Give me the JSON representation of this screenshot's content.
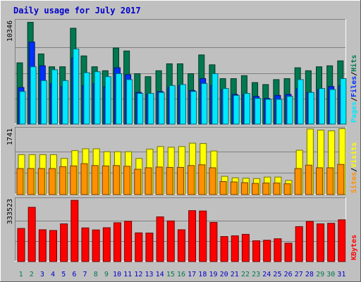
{
  "title": "Daily usage for July 2017",
  "colors": {
    "background": "#c0c0c0",
    "plot_bg": "#c0c0c0",
    "title": "#0000cc",
    "grid": "#808080",
    "hits": "#007850",
    "files": "#0030ff",
    "pages": "#00e8ff",
    "visits": "#ffff00",
    "sites": "#ff9000",
    "kbytes": "#ff0000",
    "weekend_label": "#007850",
    "weekday_label": "#0000cc"
  },
  "chart_data": [
    {
      "type": "bar",
      "name": "hits-files-pages",
      "y_max_label": "10346",
      "ylim": [
        0,
        10346
      ],
      "right_label": [
        "Pages",
        "Files",
        "Hits"
      ],
      "categories": [
        "1",
        "2",
        "3",
        "4",
        "5",
        "6",
        "7",
        "8",
        "9",
        "10",
        "11",
        "12",
        "13",
        "14",
        "15",
        "16",
        "17",
        "18",
        "19",
        "20",
        "21",
        "22",
        "23",
        "24",
        "25",
        "26",
        "27",
        "28",
        "29",
        "30",
        "31"
      ],
      "series": [
        {
          "name": "Hits",
          "values": [
            6200,
            10300,
            7100,
            5800,
            5800,
            9700,
            6900,
            5800,
            5400,
            7700,
            7400,
            5100,
            4800,
            5400,
            6100,
            6100,
            5100,
            7000,
            6000,
            4600,
            4600,
            4900,
            4200,
            4000,
            4500,
            4600,
            5700,
            5400,
            5800,
            5900,
            6400
          ]
        },
        {
          "name": "Files",
          "values": [
            3700,
            8300,
            5900,
            4100,
            3800,
            6700,
            3900,
            4100,
            3800,
            5700,
            5000,
            3200,
            3000,
            3300,
            3700,
            3900,
            3400,
            4600,
            3900,
            3500,
            3000,
            3000,
            2800,
            2600,
            2900,
            3000,
            3600,
            3200,
            3500,
            3800,
            3900
          ]
        },
        {
          "name": "Pages",
          "values": [
            3300,
            5800,
            4400,
            5500,
            4400,
            7600,
            5200,
            5300,
            4800,
            5100,
            4500,
            3100,
            3100,
            3200,
            3900,
            4000,
            3300,
            4100,
            5100,
            3600,
            2900,
            3100,
            2600,
            2500,
            2500,
            2800,
            4500,
            3200,
            3600,
            3500,
            4600
          ]
        }
      ]
    },
    {
      "type": "bar",
      "name": "visits-sites",
      "y_max_label": "1741",
      "ylim": [
        0,
        1741
      ],
      "right_label": [
        "Sites",
        "Visits"
      ],
      "categories": [
        "1",
        "2",
        "3",
        "4",
        "5",
        "6",
        "7",
        "8",
        "9",
        "10",
        "11",
        "12",
        "13",
        "14",
        "15",
        "16",
        "17",
        "18",
        "19",
        "20",
        "21",
        "22",
        "23",
        "24",
        "25",
        "26",
        "27",
        "28",
        "29",
        "30",
        "31"
      ],
      "series": [
        {
          "name": "Visits",
          "values": [
            1070,
            1070,
            1070,
            1070,
            970,
            1180,
            1230,
            1230,
            1150,
            1150,
            1150,
            970,
            1220,
            1290,
            1270,
            1290,
            1380,
            1370,
            1170,
            490,
            450,
            440,
            430,
            470,
            470,
            380,
            1190,
            1760,
            1730,
            1710,
            1770
          ]
        },
        {
          "name": "Sites",
          "values": [
            700,
            700,
            700,
            700,
            750,
            770,
            830,
            780,
            770,
            780,
            760,
            680,
            720,
            740,
            730,
            730,
            780,
            800,
            720,
            350,
            340,
            320,
            300,
            310,
            310,
            290,
            700,
            790,
            720,
            720,
            810
          ]
        }
      ]
    },
    {
      "type": "bar",
      "name": "kbytes",
      "y_max_label": "333523",
      "ylim": [
        0,
        333523
      ],
      "right_label": [
        "KBytes"
      ],
      "categories": [
        "1",
        "2",
        "3",
        "4",
        "5",
        "6",
        "7",
        "8",
        "9",
        "10",
        "11",
        "12",
        "13",
        "14",
        "15",
        "16",
        "17",
        "18",
        "19",
        "20",
        "21",
        "22",
        "23",
        "24",
        "25",
        "26",
        "27",
        "28",
        "29",
        "30",
        "31"
      ],
      "series": [
        {
          "name": "KBytes",
          "values": [
            180000,
            295000,
            173000,
            169000,
            205000,
            333000,
            183000,
            172000,
            184000,
            211000,
            219000,
            156000,
            155000,
            243000,
            221000,
            173000,
            277000,
            275000,
            213000,
            136000,
            140000,
            148000,
            113000,
            116000,
            124000,
            100000,
            190000,
            218000,
            205000,
            208000,
            227000
          ]
        }
      ]
    }
  ],
  "weekend_days": [
    1,
    2,
    8,
    9,
    15,
    16,
    22,
    23,
    29,
    30
  ]
}
